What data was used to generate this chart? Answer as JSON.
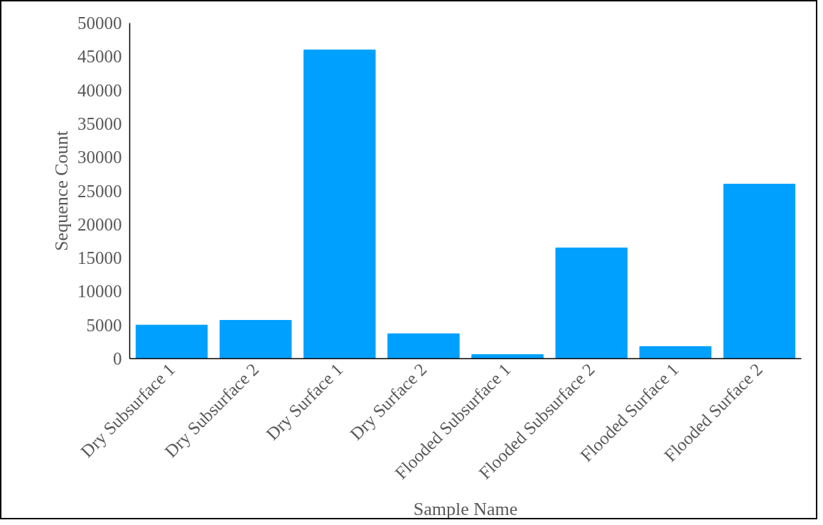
{
  "chart_data": {
    "type": "bar",
    "xlabel": "Sample Name",
    "ylabel": "Sequence Count",
    "categories": [
      "Dry Subsurface 1",
      "Dry Subsurface 2",
      "Dry Surface 1",
      "Dry Surface 2",
      "Flooded Subsurface 1",
      "Flooded Subsurface 2",
      "Flooded Surface 1",
      "Flooded Surface 2"
    ],
    "values": [
      5000,
      5700,
      46000,
      3700,
      600,
      16500,
      1800,
      26000
    ],
    "color": "#00a0ff",
    "ylim": [
      0,
      50000
    ],
    "yticks": [
      0,
      5000,
      10000,
      15000,
      20000,
      25000,
      30000,
      35000,
      40000,
      45000,
      50000
    ],
    "grid": false
  }
}
